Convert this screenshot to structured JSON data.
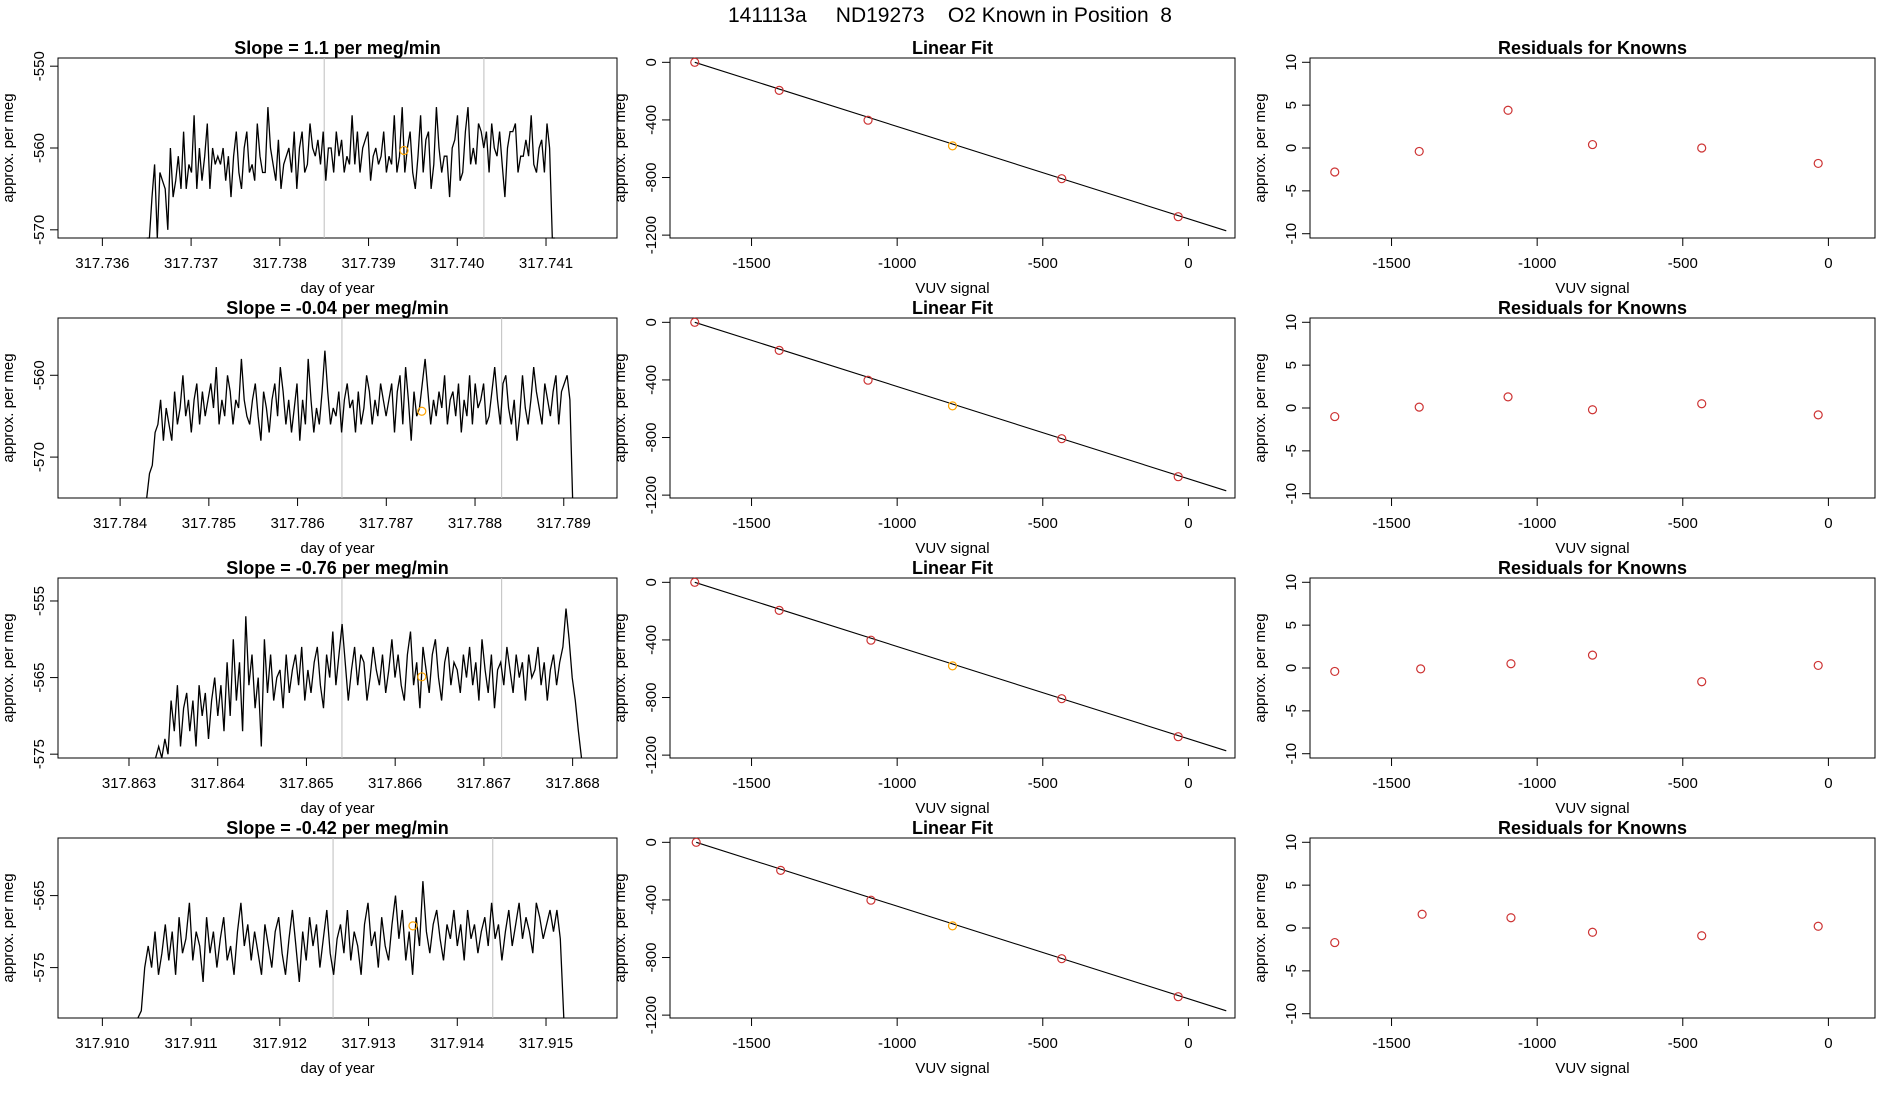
{
  "figure": {
    "title": "141113a     ND19273    O2 Known in Position  8"
  },
  "colors": {
    "line": "#000000",
    "marker_red": "#cd3333",
    "marker_orange": "#ffa500",
    "vline": "#bebebe",
    "frame": "#000000"
  },
  "chart_data": [
    {
      "type": "line",
      "row": 0,
      "panel": "time-series",
      "title": "Slope =  1.1  per meg/min",
      "xlabel": "day of year",
      "ylabel": "approx. per meg",
      "xlim": [
        317.7355,
        317.7418
      ],
      "ylim": [
        -571,
        -549
      ],
      "xticks": [
        "317.736",
        "317.737",
        "317.738",
        "317.739",
        "317.740",
        "317.741"
      ],
      "yticks": [
        "-550",
        "-560",
        "-570"
      ],
      "vlines": [
        317.7385,
        317.7403
      ],
      "x_start": 317.7365,
      "x_end": 317.7411,
      "values": [
        -572,
        -572,
        -566,
        -562,
        -571,
        -563,
        -564,
        -565,
        -570,
        -560,
        -566,
        -564,
        -561,
        -565,
        -558,
        -565,
        -562,
        -563,
        -556,
        -565,
        -560,
        -564,
        -561,
        -557,
        -565,
        -560,
        -562,
        -561,
        -562,
        -560,
        -564,
        -561,
        -566,
        -561,
        -558,
        -563,
        -565,
        -560,
        -558,
        -563,
        -562,
        -564,
        -557,
        -561,
        -563,
        -563,
        -555,
        -560,
        -562,
        -564,
        -559,
        -565,
        -562,
        -561,
        -560,
        -563,
        -558,
        -565,
        -560,
        -558,
        -563,
        -562,
        -557,
        -560,
        -561,
        -559,
        -562,
        -558,
        -564,
        -560,
        -560,
        -563,
        -558,
        -561,
        -559,
        -563,
        -561,
        -562,
        -556,
        -562,
        -558,
        -563,
        -560,
        -559,
        -558,
        -564,
        -561,
        -560,
        -562,
        -561,
        -558,
        -563,
        -561,
        -562,
        -556,
        -563,
        -561,
        -555,
        -563,
        -560,
        -558,
        -563,
        -565,
        -561,
        -556,
        -563,
        -559,
        -558,
        -565,
        -562,
        -555,
        -560,
        -563,
        -561,
        -561,
        -566,
        -560,
        -559,
        -556,
        -564,
        -563,
        -558,
        -555,
        -562,
        -560,
        -562,
        -557,
        -558,
        -560,
        -558,
        -563,
        -557,
        -560,
        -561,
        -558,
        -562,
        -566,
        -560,
        -558,
        -558,
        -557,
        -563,
        -561,
        -561,
        -559,
        -561,
        -556,
        -562,
        -563,
        -560,
        -559,
        -563,
        -557,
        -560,
        -571,
        -572
      ],
      "marker": {
        "x": 317.7394,
        "y": -560.3
      }
    },
    {
      "type": "scatter",
      "row": 0,
      "panel": "linear-fit",
      "title": "Linear Fit",
      "xlabel": "VUV signal",
      "ylabel": "approx. per meg",
      "xlim": [
        -1780,
        160
      ],
      "ylim": [
        -1220,
        30
      ],
      "xticks": [
        "-1500",
        "-1000",
        "-500",
        "0"
      ],
      "yticks": [
        "0",
        "-400",
        "-800",
        "-1200"
      ],
      "x": [
        -1695,
        -1405,
        -1100,
        -810,
        -435,
        -35
      ],
      "y": [
        0,
        -195,
        -402,
        -580,
        -808,
        -1072
      ],
      "highlight_index": 3,
      "fit_line": {
        "x": [
          -1695,
          130
        ],
        "y": [
          0,
          -1170
        ]
      }
    },
    {
      "type": "scatter",
      "row": 0,
      "panel": "residuals",
      "title": "Residuals for Knowns",
      "xlabel": "VUV signal",
      "ylabel": "approx. per meg",
      "xlim": [
        -1780,
        160
      ],
      "ylim": [
        -10.5,
        10.5
      ],
      "xticks": [
        "-1500",
        "-1000",
        "-500",
        "0"
      ],
      "yticks": [
        "10",
        "5",
        "0",
        "-5",
        "-10"
      ],
      "x": [
        -1695,
        -1405,
        -1100,
        -810,
        -435,
        -35
      ],
      "y": [
        -2.8,
        -0.4,
        4.4,
        0.4,
        0.0,
        -1.8
      ]
    },
    {
      "type": "line",
      "row": 1,
      "panel": "time-series",
      "title": "Slope =  -0.04  per meg/min",
      "xlabel": "day of year",
      "ylabel": "approx. per meg",
      "xlim": [
        317.7833,
        317.7896
      ],
      "ylim": [
        -575,
        -553
      ],
      "xticks": [
        "317.784",
        "317.785",
        "317.786",
        "317.787",
        "317.788",
        "317.789"
      ],
      "yticks": [
        "-560",
        "-570"
      ],
      "vlines": [
        317.7865,
        317.7883
      ],
      "x_start": 317.7843,
      "x_end": 317.7891,
      "values": [
        -576,
        -572,
        -571,
        -567,
        -566,
        -563,
        -568,
        -564,
        -566,
        -568,
        -562,
        -566,
        -564,
        -560,
        -565,
        -563,
        -567,
        -563,
        -561,
        -566,
        -562,
        -565,
        -563,
        -561,
        -564,
        -559,
        -566,
        -563,
        -565,
        -560,
        -562,
        -566,
        -563,
        -564,
        -558,
        -563,
        -565,
        -566,
        -563,
        -561,
        -565,
        -568,
        -562,
        -564,
        -567,
        -563,
        -561,
        -565,
        -559,
        -562,
        -566,
        -563,
        -567,
        -564,
        -561,
        -568,
        -563,
        -566,
        -558,
        -563,
        -567,
        -564,
        -566,
        -562,
        -557,
        -562,
        -566,
        -564,
        -565,
        -562,
        -567,
        -563,
        -561,
        -564,
        -563,
        -567,
        -562,
        -566,
        -564,
        -560,
        -562,
        -566,
        -563,
        -565,
        -561,
        -563,
        -565,
        -563,
        -561,
        -567,
        -562,
        -560,
        -566,
        -559,
        -563,
        -568,
        -562,
        -565,
        -564,
        -561,
        -558,
        -562,
        -566,
        -563,
        -565,
        -562,
        -564,
        -560,
        -566,
        -563,
        -562,
        -565,
        -561,
        -567,
        -563,
        -565,
        -560,
        -566,
        -561,
        -564,
        -563,
        -561,
        -566,
        -565,
        -562,
        -559,
        -563,
        -566,
        -561,
        -560,
        -564,
        -566,
        -563,
        -568,
        -565,
        -560,
        -564,
        -566,
        -563,
        -559,
        -562,
        -564,
        -566,
        -561,
        -563,
        -565,
        -562,
        -560,
        -566,
        -562,
        -561,
        -560,
        -563,
        -576
      ],
      "marker": {
        "x": 317.7874,
        "y": -564.4
      }
    },
    {
      "type": "scatter",
      "row": 1,
      "panel": "linear-fit",
      "title": "Linear Fit",
      "xlabel": "VUV signal",
      "ylabel": "approx. per meg",
      "xlim": [
        -1780,
        160
      ],
      "ylim": [
        -1220,
        30
      ],
      "xticks": [
        "-1500",
        "-1000",
        "-500",
        "0"
      ],
      "yticks": [
        "0",
        "-400",
        "-800",
        "-1200"
      ],
      "x": [
        -1695,
        -1405,
        -1100,
        -810,
        -435,
        -35
      ],
      "y": [
        0,
        -195,
        -402,
        -580,
        -808,
        -1072
      ],
      "highlight_index": 3,
      "fit_line": {
        "x": [
          -1695,
          130
        ],
        "y": [
          0,
          -1170
        ]
      }
    },
    {
      "type": "scatter",
      "row": 1,
      "panel": "residuals",
      "title": "Residuals for Knowns",
      "xlabel": "VUV signal",
      "ylabel": "approx. per meg",
      "xlim": [
        -1780,
        160
      ],
      "ylim": [
        -10.5,
        10.5
      ],
      "xticks": [
        "-1500",
        "-1000",
        "-500",
        "0"
      ],
      "yticks": [
        "10",
        "5",
        "0",
        "-5",
        "-10"
      ],
      "x": [
        -1695,
        -1405,
        -1100,
        -810,
        -435,
        -35
      ],
      "y": [
        -1.0,
        0.1,
        1.3,
        -0.2,
        0.5,
        -0.8
      ]
    },
    {
      "type": "line",
      "row": 2,
      "panel": "time-series",
      "title": "Slope =  -0.76  per meg/min",
      "xlabel": "day of year",
      "ylabel": "approx. per meg",
      "xlim": [
        317.8622,
        317.8685
      ],
      "ylim": [
        -575.5,
        -552
      ],
      "xticks": [
        "317.863",
        "317.864",
        "317.865",
        "317.866",
        "317.867",
        "317.868"
      ],
      "yticks": [
        "-555",
        "-565",
        "-575"
      ],
      "vlines": [
        317.8654,
        317.8672
      ],
      "x_start": 317.8633,
      "x_end": 317.8681,
      "values": [
        -577,
        -574,
        -576,
        -573,
        -575,
        -568,
        -572,
        -566,
        -574,
        -569,
        -567,
        -572,
        -568,
        -574,
        -566,
        -570,
        -567,
        -573,
        -568,
        -565,
        -570,
        -566,
        -572,
        -563,
        -570,
        -560,
        -568,
        -563,
        -572,
        -557,
        -566,
        -562,
        -569,
        -565,
        -574,
        -560,
        -567,
        -562,
        -568,
        -565,
        -564,
        -569,
        -562,
        -567,
        -564,
        -562,
        -566,
        -561,
        -568,
        -564,
        -567,
        -563,
        -561,
        -566,
        -569,
        -562,
        -565,
        -559,
        -566,
        -562,
        -558,
        -563,
        -568,
        -564,
        -561,
        -566,
        -562,
        -563,
        -568,
        -565,
        -561,
        -564,
        -566,
        -562,
        -567,
        -564,
        -560,
        -565,
        -562,
        -566,
        -568,
        -562,
        -559,
        -566,
        -563,
        -569,
        -561,
        -564,
        -567,
        -562,
        -560,
        -565,
        -568,
        -563,
        -561,
        -566,
        -563,
        -564,
        -567,
        -562,
        -565,
        -561,
        -566,
        -563,
        -568,
        -560,
        -564,
        -567,
        -562,
        -569,
        -564,
        -563,
        -566,
        -561,
        -564,
        -567,
        -562,
        -565,
        -563,
        -568,
        -562,
        -565,
        -564,
        -561,
        -566,
        -563,
        -568,
        -564,
        -562,
        -566,
        -563,
        -561,
        -556,
        -560,
        -565,
        -568,
        -572,
        -576
      ],
      "marker": {
        "x": 317.8663,
        "y": -564.9
      }
    },
    {
      "type": "scatter",
      "row": 2,
      "panel": "linear-fit",
      "title": "Linear Fit",
      "xlabel": "VUV signal",
      "ylabel": "approx. per meg",
      "xlim": [
        -1780,
        160
      ],
      "ylim": [
        -1220,
        30
      ],
      "xticks": [
        "-1500",
        "-1000",
        "-500",
        "0"
      ],
      "yticks": [
        "0",
        "-400",
        "-800",
        "-1200"
      ],
      "x": [
        -1695,
        -1405,
        -1090,
        -810,
        -435,
        -35
      ],
      "y": [
        0,
        -195,
        -402,
        -580,
        -808,
        -1072
      ],
      "highlight_index": 3,
      "fit_line": {
        "x": [
          -1695,
          130
        ],
        "y": [
          0,
          -1170
        ]
      }
    },
    {
      "type": "scatter",
      "row": 2,
      "panel": "residuals",
      "title": "Residuals for Knowns",
      "xlabel": "VUV signal",
      "ylabel": "approx. per meg",
      "xlim": [
        -1780,
        160
      ],
      "ylim": [
        -10.5,
        10.5
      ],
      "xticks": [
        "-1500",
        "-1000",
        "-500",
        "0"
      ],
      "yticks": [
        "10",
        "5",
        "0",
        "-5",
        "-10"
      ],
      "x": [
        -1695,
        -1400,
        -1090,
        -810,
        -435,
        -35
      ],
      "y": [
        -0.4,
        -0.1,
        0.5,
        1.5,
        -1.6,
        0.3
      ]
    },
    {
      "type": "line",
      "row": 3,
      "panel": "time-series",
      "title": "Slope =  -0.42  per meg/min",
      "xlabel": "day of year",
      "ylabel": "approx. per meg",
      "xlim": [
        317.9095,
        317.9158
      ],
      "ylim": [
        -582,
        -557
      ],
      "xticks": [
        "317.910",
        "317.911",
        "317.912",
        "317.913",
        "317.914",
        "317.915"
      ],
      "yticks": [
        "-565",
        "-575"
      ],
      "vlines": [
        317.9126,
        317.9144
      ],
      "x_start": 317.9104,
      "x_end": 317.9152,
      "values": [
        -583,
        -581,
        -575,
        -572,
        -575,
        -570,
        -576,
        -573,
        -569,
        -574,
        -570,
        -576,
        -568,
        -573,
        -571,
        -566,
        -574,
        -570,
        -572,
        -577,
        -568,
        -573,
        -570,
        -575,
        -571,
        -568,
        -574,
        -572,
        -576,
        -570,
        -566,
        -572,
        -569,
        -574,
        -570,
        -573,
        -576,
        -569,
        -572,
        -575,
        -570,
        -568,
        -573,
        -576,
        -571,
        -567,
        -572,
        -577,
        -570,
        -574,
        -568,
        -572,
        -569,
        -575,
        -571,
        -567,
        -573,
        -576,
        -571,
        -569,
        -573,
        -567,
        -574,
        -570,
        -572,
        -576,
        -569,
        -566,
        -572,
        -570,
        -575,
        -568,
        -572,
        -574,
        -569,
        -565,
        -571,
        -567,
        -574,
        -570,
        -576,
        -568,
        -572,
        -563,
        -570,
        -573,
        -569,
        -567,
        -571,
        -574,
        -569,
        -571,
        -567,
        -572,
        -569,
        -574,
        -567,
        -571,
        -569,
        -573,
        -570,
        -568,
        -572,
        -566,
        -571,
        -569,
        -574,
        -570,
        -567,
        -572,
        -569,
        -566,
        -571,
        -568,
        -570,
        -573,
        -566,
        -568,
        -571,
        -569,
        -567,
        -570,
        -567,
        -571,
        -583
      ],
      "marker": {
        "x": 317.9135,
        "y": -569.2
      }
    },
    {
      "type": "scatter",
      "row": 3,
      "panel": "linear-fit",
      "title": "Linear Fit",
      "xlabel": "VUV signal",
      "ylabel": "approx. per meg",
      "xlim": [
        -1780,
        160
      ],
      "ylim": [
        -1220,
        30
      ],
      "xticks": [
        "-1500",
        "-1000",
        "-500",
        "0"
      ],
      "yticks": [
        "0",
        "-400",
        "-800",
        "-1200"
      ],
      "x": [
        -1690,
        -1400,
        -1090,
        -810,
        -435,
        -35
      ],
      "y": [
        0,
        -195,
        -402,
        -580,
        -808,
        -1072
      ],
      "highlight_index": 3,
      "fit_line": {
        "x": [
          -1690,
          130
        ],
        "y": [
          0,
          -1170
        ]
      }
    },
    {
      "type": "scatter",
      "row": 3,
      "panel": "residuals",
      "title": "Residuals for Knowns",
      "xlabel": "VUV signal",
      "ylabel": "approx. per meg",
      "xlim": [
        -1780,
        160
      ],
      "ylim": [
        -10.5,
        10.5
      ],
      "xticks": [
        "-1500",
        "-1000",
        "-500",
        "0"
      ],
      "yticks": [
        "10",
        "5",
        "0",
        "-5",
        "-10"
      ],
      "x": [
        -1695,
        -1395,
        -1090,
        -810,
        -435,
        -35
      ],
      "y": [
        -1.7,
        1.6,
        1.2,
        -0.5,
        -0.9,
        0.2
      ]
    }
  ]
}
